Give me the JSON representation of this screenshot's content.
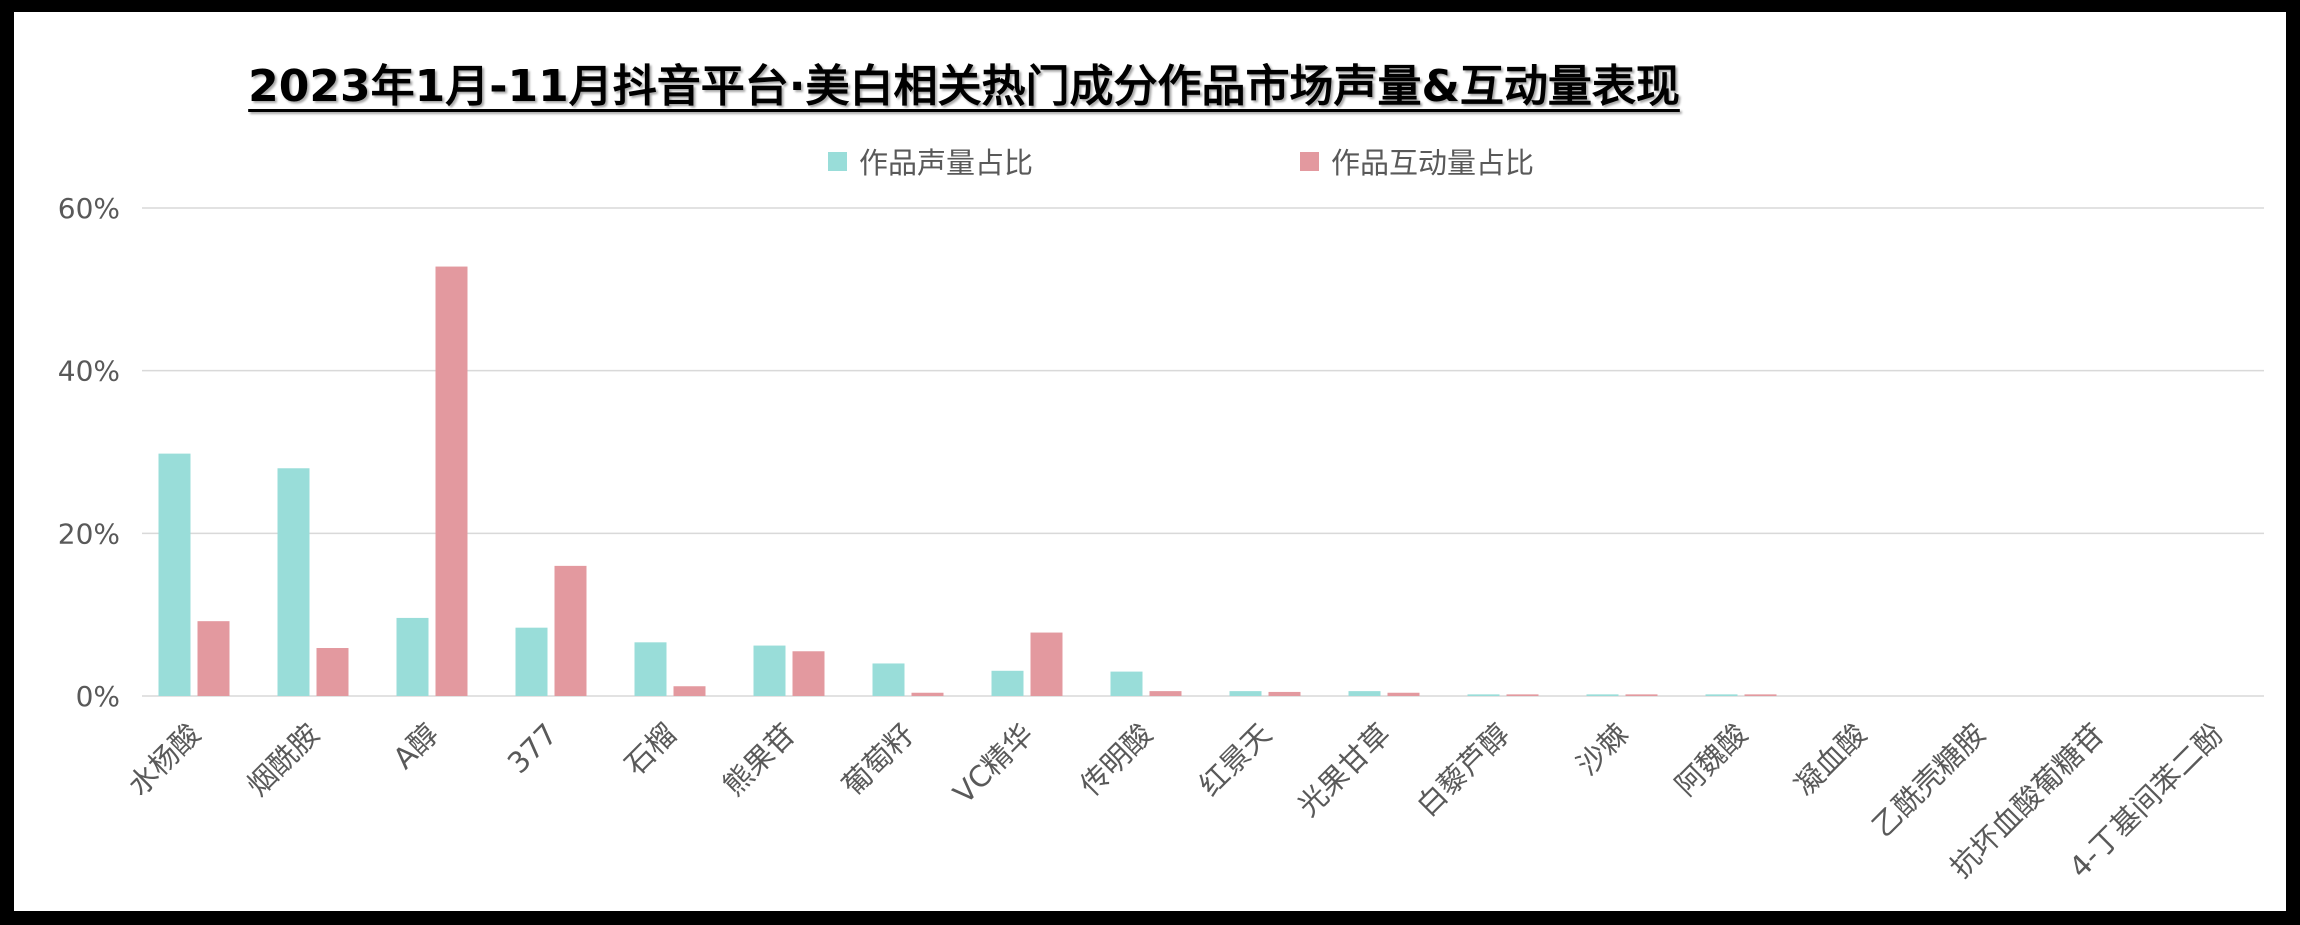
{
  "colors": {
    "series1": "#99ddd9",
    "series2": "#e3999f",
    "grid": "#d9d9d9",
    "text": "#595959"
  },
  "chart_data": {
    "type": "bar",
    "title": "2023年1月-11月抖音平台·美白相关热门成分作品市场声量&互动量表现",
    "xlabel": "",
    "ylabel": "",
    "ylim": [
      0,
      60
    ],
    "yticks": [
      0,
      20,
      40,
      60
    ],
    "ytick_labels": [
      "0%",
      "20%",
      "40%",
      "60%"
    ],
    "grid": true,
    "legend_position": "top",
    "categories": [
      "水杨酸",
      "烟酰胺",
      "A醇",
      "377",
      "石榴",
      "熊果苷",
      "葡萄籽",
      "VC精华",
      "传明酸",
      "红景天",
      "光果甘草",
      "白藜芦醇",
      "沙棘",
      "阿魏酸",
      "凝血酸",
      "乙酰壳糖胺",
      "抗坏血酸葡糖苷",
      "4-丁基间苯二酚"
    ],
    "series": [
      {
        "name": "作品声量占比",
        "values": [
          29.8,
          28.0,
          9.6,
          8.4,
          6.6,
          6.2,
          4.0,
          3.1,
          3.0,
          0.6,
          0.6,
          0.2,
          0.2,
          0.2,
          0.0,
          0.0,
          0.0,
          0.0
        ]
      },
      {
        "name": "作品互动量占比",
        "values": [
          9.2,
          5.9,
          52.8,
          16.0,
          1.2,
          5.5,
          0.4,
          7.8,
          0.6,
          0.5,
          0.4,
          0.2,
          0.2,
          0.2,
          0.0,
          0.0,
          0.0,
          0.0
        ]
      }
    ]
  }
}
